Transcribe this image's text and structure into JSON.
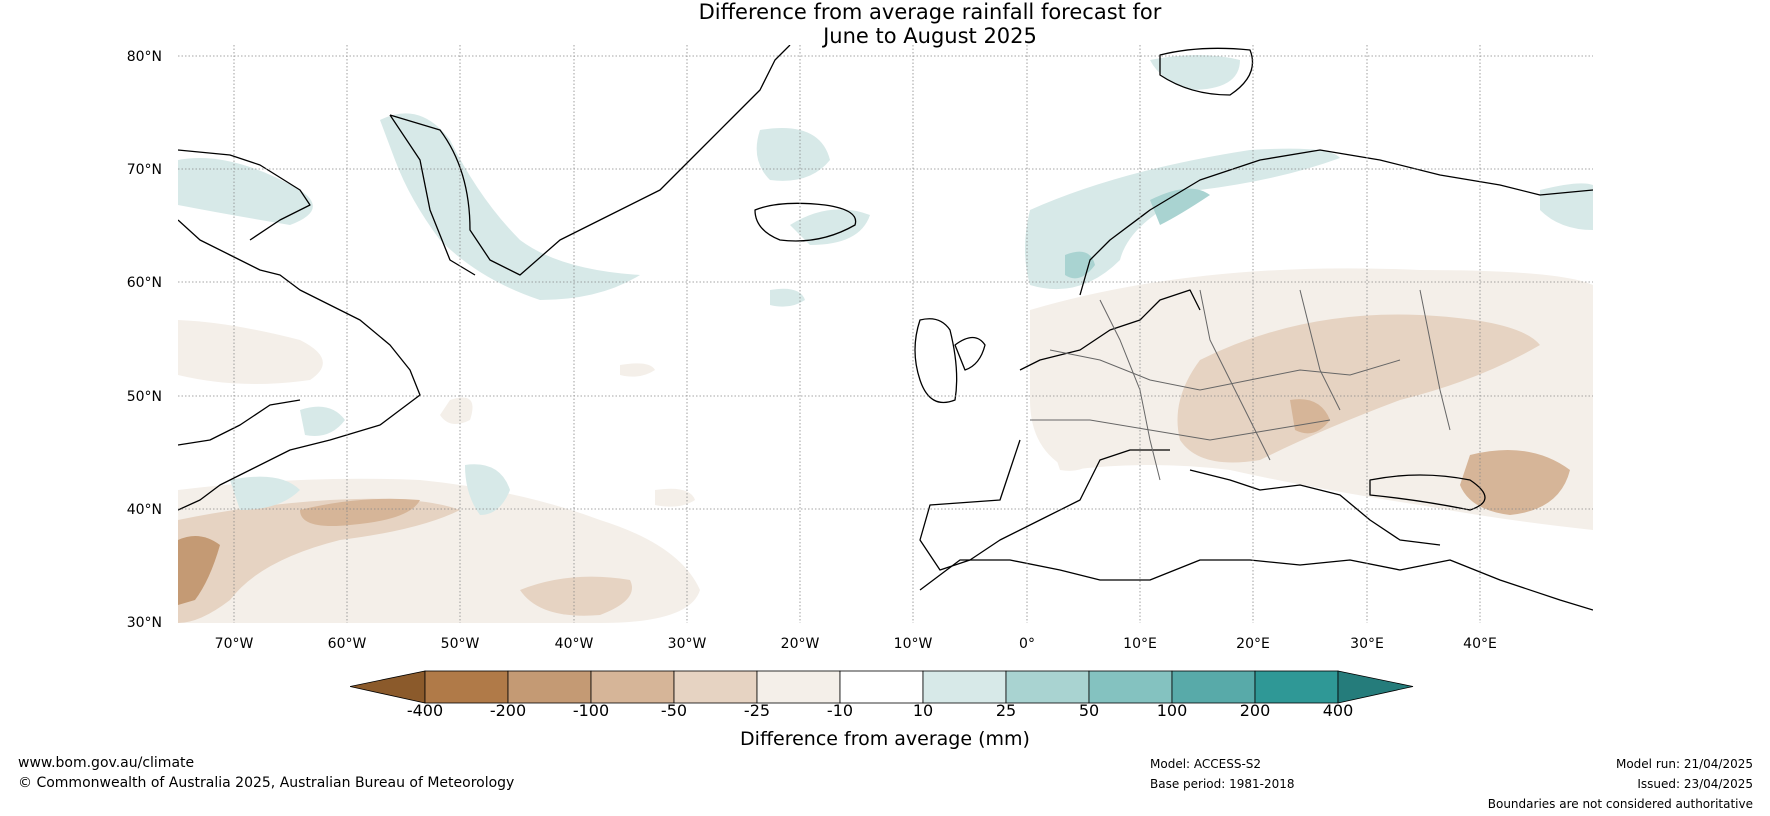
{
  "title": {
    "line1": "Difference from average rainfall forecast for",
    "line2": "June to August 2025"
  },
  "map": {
    "lat_labels": [
      "80°N",
      "70°N",
      "60°N",
      "50°N",
      "40°N",
      "30°N"
    ],
    "lon_labels": [
      "70°W",
      "60°W",
      "50°W",
      "40°W",
      "30°W",
      "20°W",
      "10°W",
      "0°",
      "10°E",
      "20°E",
      "30°E",
      "40°E"
    ],
    "extent": {
      "lon": [
        -75,
        50
      ],
      "lat": [
        30,
        81
      ]
    },
    "gridlines": true
  },
  "legend": {
    "ticks": [
      "-400",
      "-200",
      "-100",
      "-50",
      "-25",
      "-10",
      "10",
      "25",
      "50",
      "100",
      "200",
      "400"
    ],
    "colors": [
      "#8b5a2b",
      "#b07a48",
      "#c49a74",
      "#d6b598",
      "#e6d3c2",
      "#f4efe9",
      "#ffffff",
      "#d7e9e8",
      "#a9d3d1",
      "#84c2c0",
      "#58aaa9",
      "#2f9896",
      "#257c7b"
    ],
    "label": "Difference from average (mm)"
  },
  "footer": {
    "website": "www.bom.gov.au/climate",
    "copyright": "© Commonwealth of Australia 2025, Australian Bureau of Meteorology",
    "model": "Model: ACCESS-S2",
    "base_period": "Base period: 1981-2018",
    "model_run": "Model run: 21/04/2025",
    "issued": "Issued: 23/04/2025",
    "disclaimer": "Boundaries are not considered authoritative"
  }
}
